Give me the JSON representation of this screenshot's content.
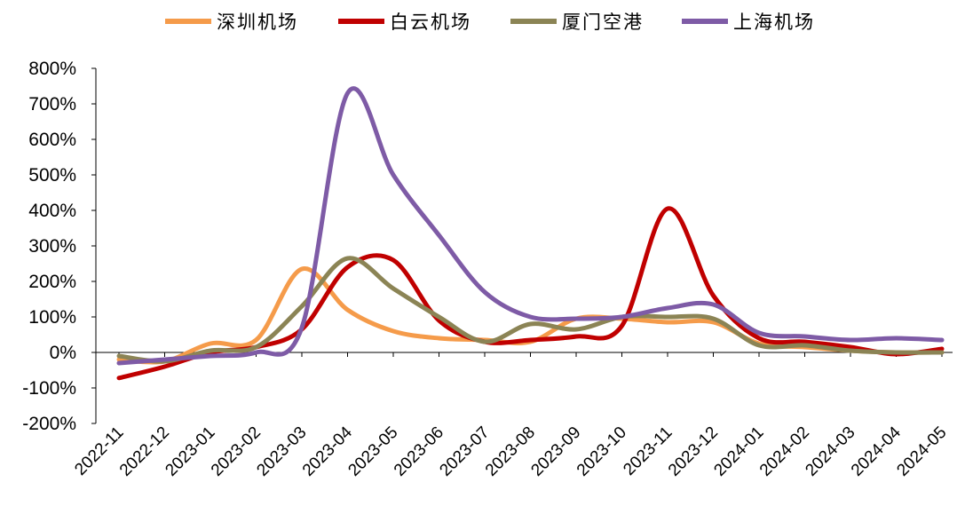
{
  "chart_data": {
    "type": "line",
    "x": [
      "2022-11",
      "2022-12",
      "2023-01",
      "2023-02",
      "2023-03",
      "2023-04",
      "2023-05",
      "2023-06",
      "2023-07",
      "2023-08",
      "2023-09",
      "2023-10",
      "2023-11",
      "2023-12",
      "2024-01",
      "2024-02",
      "2024-03",
      "2024-04",
      "2024-05"
    ],
    "y_ticks": [
      "800%",
      "700%",
      "600%",
      "500%",
      "400%",
      "300%",
      "200%",
      "100%",
      "0%",
      "-100%",
      "-200%"
    ],
    "ylim": [
      -200,
      800
    ],
    "legend_position": "top",
    "series": [
      {
        "name": "深圳机场",
        "color": "#F59B4A",
        "values": [
          -20,
          -25,
          25,
          35,
          235,
          120,
          60,
          40,
          35,
          30,
          95,
          95,
          85,
          85,
          25,
          15,
          5,
          0,
          0
        ]
      },
      {
        "name": "白云机场",
        "color": "#C00000",
        "values": [
          -72,
          -40,
          0,
          15,
          65,
          240,
          260,
          90,
          30,
          35,
          45,
          75,
          405,
          160,
          40,
          30,
          15,
          -5,
          10
        ]
      },
      {
        "name": "厦门空港",
        "color": "#8B8455",
        "values": [
          -10,
          -25,
          5,
          15,
          130,
          265,
          180,
          100,
          30,
          80,
          65,
          100,
          100,
          95,
          20,
          20,
          5,
          0,
          0
        ]
      },
      {
        "name": "上海机场",
        "color": "#7E5BA6",
        "values": [
          -30,
          -20,
          -10,
          0,
          70,
          730,
          500,
          330,
          170,
          100,
          95,
          100,
          125,
          135,
          55,
          45,
          35,
          40,
          35
        ]
      }
    ]
  }
}
